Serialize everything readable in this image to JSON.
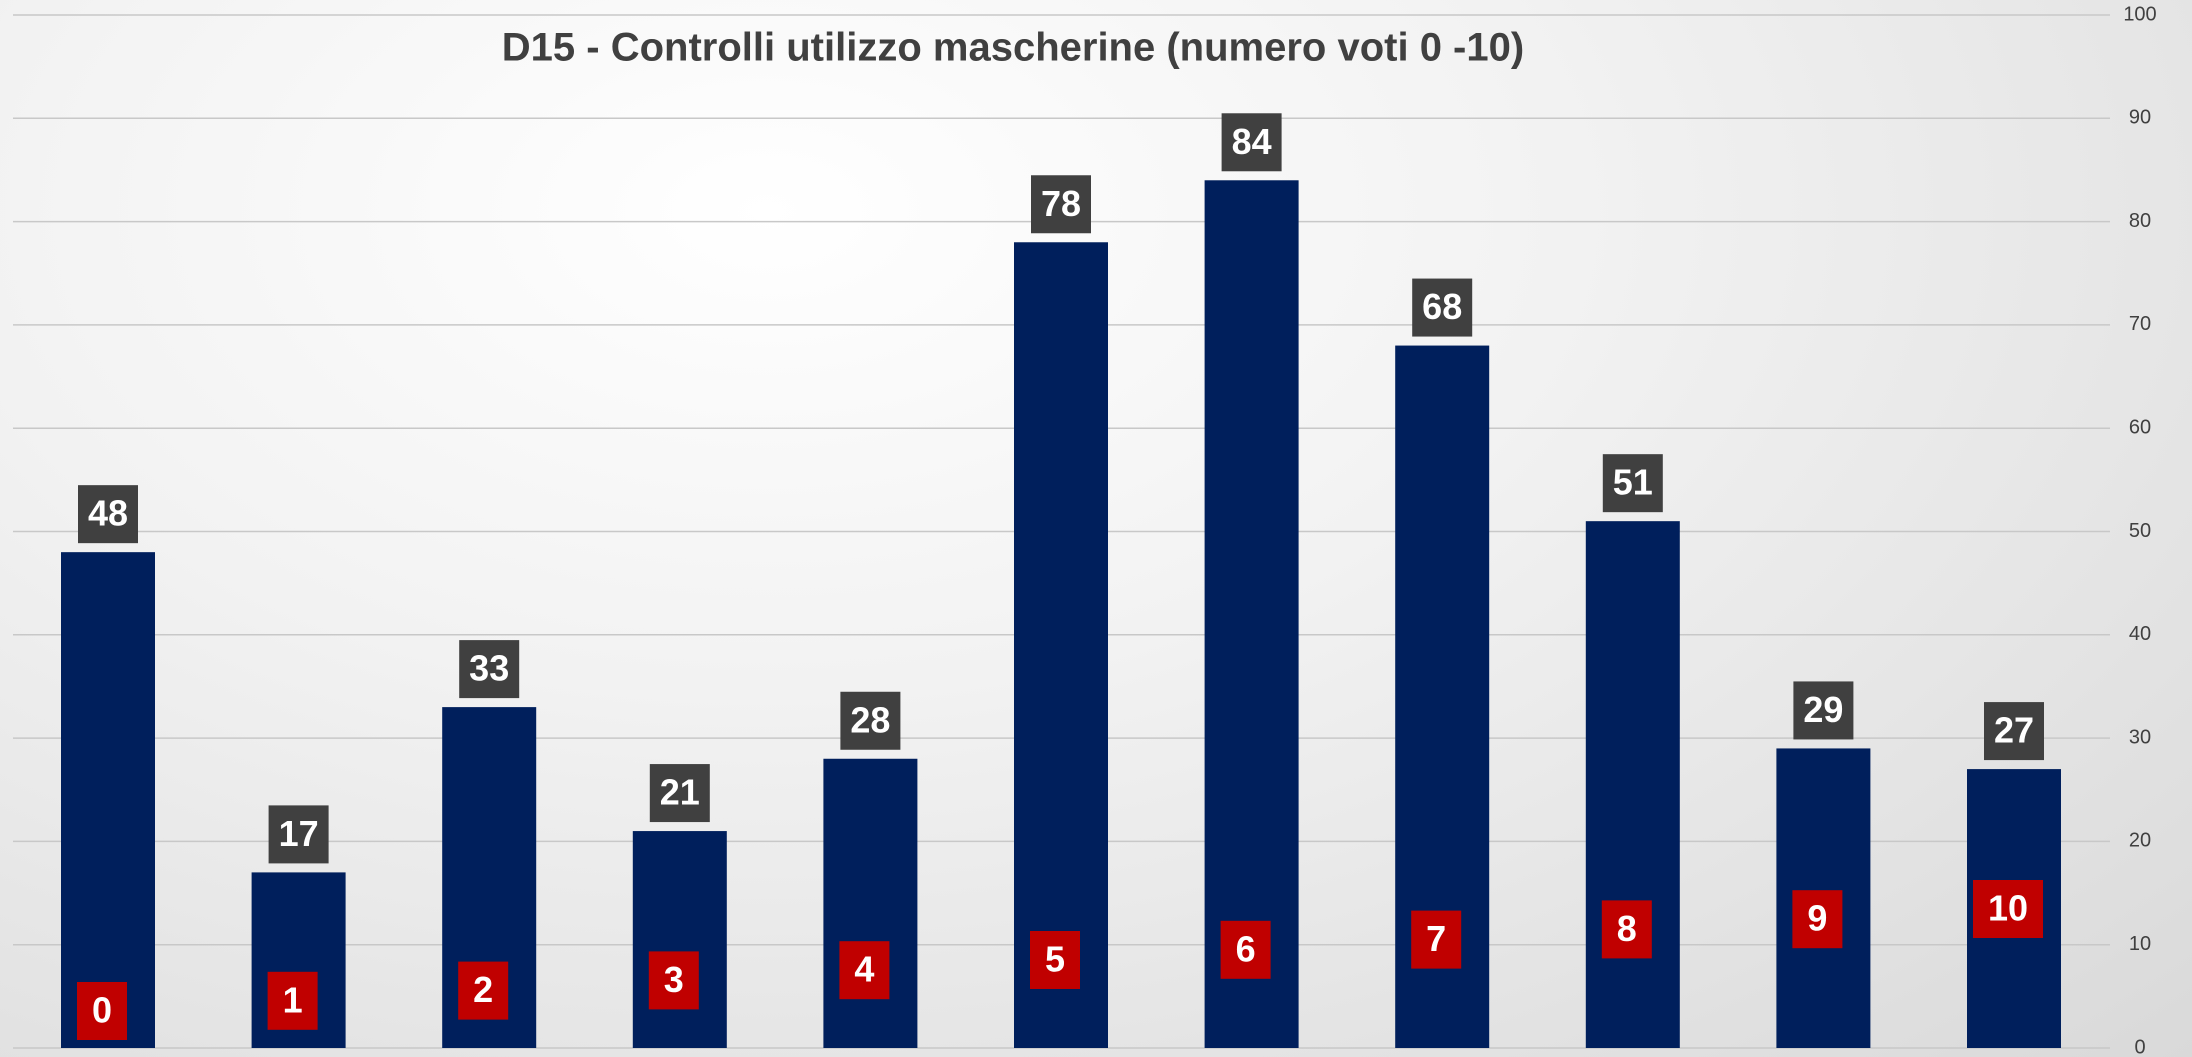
{
  "chart_data": {
    "type": "bar",
    "title": "D15 - Controlli utilizzo mascherine (numero voti 0 -10)",
    "categories": [
      "0",
      "1",
      "2",
      "3",
      "4",
      "5",
      "6",
      "7",
      "8",
      "9",
      "10"
    ],
    "values": [
      48,
      17,
      33,
      21,
      28,
      78,
      84,
      68,
      51,
      29,
      27
    ],
    "color": "#001f5c",
    "ylim": [
      0,
      100
    ],
    "yticks": [
      0,
      10,
      20,
      30,
      40,
      50,
      60,
      70,
      80,
      90,
      100
    ],
    "grid": true
  }
}
